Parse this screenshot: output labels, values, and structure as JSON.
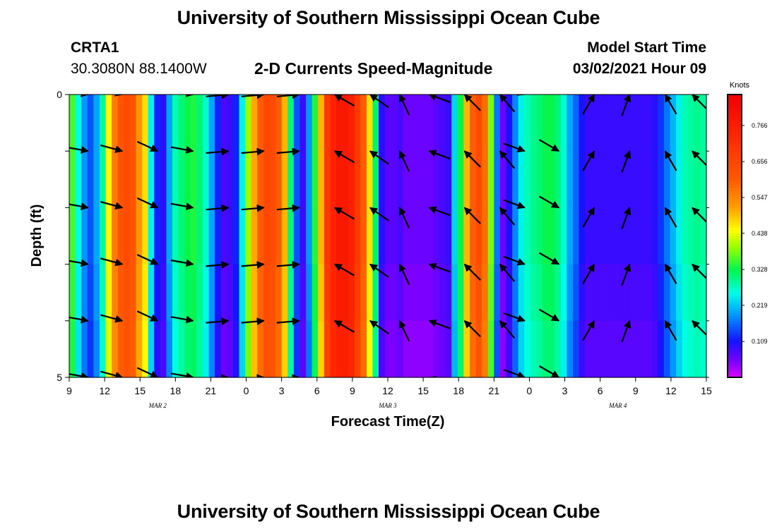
{
  "page": {
    "title_top": "University of Southern Mississippi Ocean Cube",
    "title_bottom": "University of Southern Mississippi Ocean Cube",
    "station": "CRTA1",
    "location": "30.3080N 88.1400W",
    "plot_title": "2-D Currents Speed-Magnitude",
    "model_label": "Model Start Time",
    "model_time": "03/02/2021 Hour 09"
  },
  "chart_data": {
    "type": "heatmap",
    "title": "2-D Currents Speed-Magnitude",
    "xlabel": "Forecast Time(Z)",
    "ylabel": "Depth (ft)",
    "x_range_hours": [
      0,
      54
    ],
    "y_range": [
      0,
      5
    ],
    "x_ticks": [
      "9",
      "12",
      "15",
      "18",
      "21",
      "0",
      "3",
      "6",
      "9",
      "12",
      "15",
      "18",
      "21",
      "0",
      "3",
      "6",
      "9",
      "12",
      "15"
    ],
    "y_ticks": [
      "0",
      "5"
    ],
    "date_labels": [
      {
        "text": "MAR 2",
        "hour": 7.5
      },
      {
        "text": "MAR 3",
        "hour": 27
      },
      {
        "text": "MAR 4",
        "hour": 46.5
      }
    ],
    "colorbar": {
      "unit": "Knots",
      "min": 0.0,
      "max": 0.86,
      "tick_values": [
        0.766,
        0.656,
        0.547,
        0.438,
        0.328,
        0.219,
        0.109
      ],
      "tick_labels": [
        "0.766",
        "0.656",
        "0.547",
        "0.438",
        "0.328",
        "0.219",
        "0.109"
      ]
    },
    "speed_knots": [
      0.36,
      0.26,
      0.19,
      0.15,
      0.2,
      0.29,
      0.45,
      0.56,
      0.62,
      0.64,
      0.62,
      0.53,
      0.47,
      0.25,
      0.12,
      0.1,
      0.2,
      0.28,
      0.31,
      0.33,
      0.34,
      0.31,
      0.27,
      0.2,
      0.12,
      0.08,
      0.09,
      0.12,
      0.25,
      0.4,
      0.51,
      0.6,
      0.65,
      0.64,
      0.6,
      0.5,
      0.31,
      0.15,
      0.09,
      0.19,
      0.34,
      0.5,
      0.69,
      0.75,
      0.78,
      0.78,
      0.76,
      0.69,
      0.6,
      0.47,
      0.32,
      0.1,
      0.07,
      0.07,
      0.08,
      0.06,
      0.06,
      0.06,
      0.06,
      0.06,
      0.07,
      0.08,
      0.09,
      0.23,
      0.33,
      0.5,
      0.6,
      0.64,
      0.58,
      0.38,
      0.17,
      0.06,
      0.11,
      0.18,
      0.25,
      0.28,
      0.3,
      0.31,
      0.33,
      0.33,
      0.31,
      0.27,
      0.2,
      0.16,
      0.11,
      0.09,
      0.09,
      0.09,
      0.09,
      0.09,
      0.09,
      0.09,
      0.09,
      0.09,
      0.09,
      0.09,
      0.1,
      0.13,
      0.17,
      0.21,
      0.25,
      0.28,
      0.29,
      0.3,
      0.29
    ],
    "depth_modifiers": [
      {
        "row": 0,
        "add": 0.0
      },
      {
        "row": 1,
        "add": 0.0
      },
      {
        "row": 2,
        "add": 0.0
      },
      {
        "row": 3,
        "add": -0.01
      },
      {
        "row": 4,
        "add": -0.02
      }
    ],
    "vectors": {
      "hours": [
        1.6,
        4.5,
        7.5,
        10.5,
        13.5,
        16.5,
        19.5,
        22.5,
        25.5,
        28,
        30.5,
        33.5,
        36.5,
        38.6,
        41.5,
        44.5,
        47.5,
        50.5,
        52.8
      ],
      "depths_ft": [
        0,
        1,
        2,
        3,
        4,
        5
      ],
      "direction_deg": [
        190,
        195,
        205,
        190,
        175,
        175,
        175,
        30,
        35,
        65,
        20,
        45,
        50,
        200,
        210,
        120,
        110,
        60,
        45
      ],
      "speed_knots": [
        0.29,
        0.58,
        0.22,
        0.3,
        0.27,
        0.6,
        0.68,
        0.74,
        0.7,
        0.1,
        0.09,
        0.5,
        0.18,
        0.3,
        0.29,
        0.12,
        0.1,
        0.1,
        0.24
      ]
    }
  }
}
